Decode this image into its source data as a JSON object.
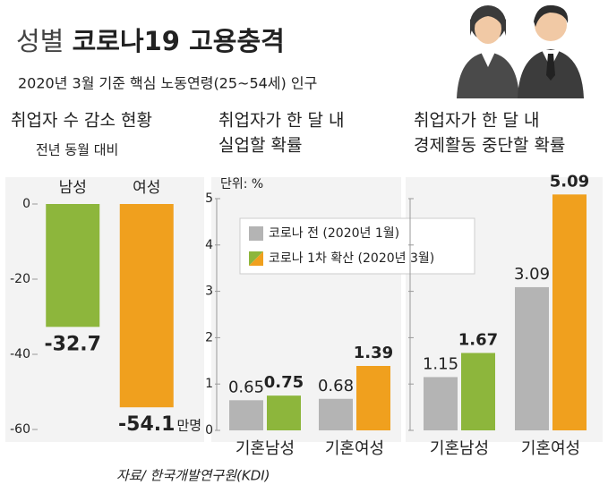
{
  "title": [
    "성별",
    "코로나19 고용충격"
  ],
  "subtitle": "2020년 3월 기준 핵심 노동연령(25~54세) 인구",
  "source": "자료/ 한국개발연구원(KDI)",
  "chart_data": [
    {
      "type": "bar",
      "title": [
        "취업자 수 감소 현황"
      ],
      "subtitle": "전년 동월 대비",
      "categories": [
        "남성",
        "여성"
      ],
      "series": [
        {
          "values": [
            -32.7,
            -54.1
          ],
          "colors": [
            "#8db63c",
            "#f0a01e"
          ]
        }
      ],
      "unit": "만명",
      "ylim": [
        -60,
        0
      ],
      "yticks": [
        0,
        -20,
        -40,
        -60
      ]
    },
    {
      "type": "bar",
      "title": [
        "취업자가 한 달 내",
        "실업할 확률"
      ],
      "unit_label": "단위: %",
      "categories": [
        "기혼남성",
        "기혼여성"
      ],
      "series": [
        {
          "name": "코로나 전 (2020년 1월)",
          "colors": [
            "#b4b4b4",
            "#b4b4b4"
          ],
          "values": [
            0.65,
            0.68
          ]
        },
        {
          "name": "코로나 1차 확산 (2020년 3월)",
          "colors": [
            "#8db63c",
            "#f0a01e"
          ],
          "values": [
            0.75,
            1.39
          ]
        }
      ],
      "ylim": [
        0,
        5
      ],
      "yticks": [
        0,
        1,
        2,
        3,
        4,
        5
      ]
    },
    {
      "type": "bar",
      "title": [
        "취업자가 한 달 내",
        "경제활동 중단할 확률"
      ],
      "categories": [
        "기혼남성",
        "기혼여성"
      ],
      "series": [
        {
          "colors": [
            "#b4b4b4",
            "#b4b4b4"
          ],
          "values": [
            1.15,
            3.09
          ]
        },
        {
          "colors": [
            "#8db63c",
            "#f0a01e"
          ],
          "values": [
            1.67,
            5.09
          ]
        }
      ],
      "ylim": [
        0,
        5
      ]
    }
  ]
}
